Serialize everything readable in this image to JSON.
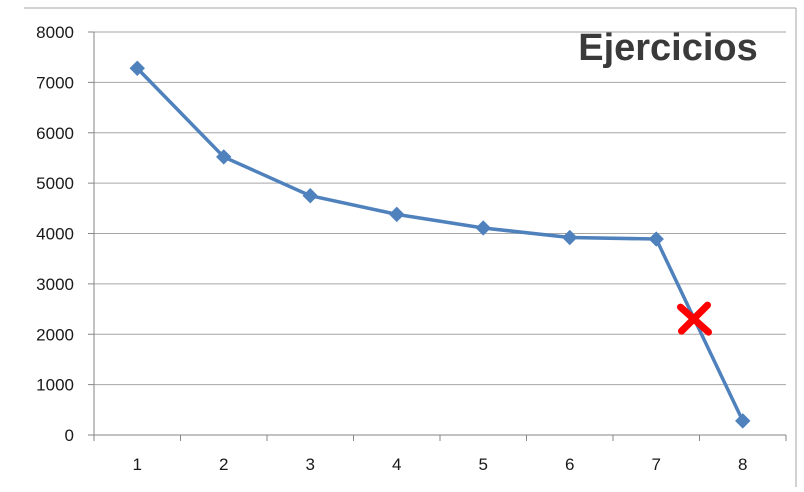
{
  "chart_data": {
    "type": "line",
    "title": "Ejercicios",
    "xlabel": "",
    "ylabel": "",
    "categories": [
      "1",
      "2",
      "3",
      "4",
      "5",
      "6",
      "7",
      "8"
    ],
    "series": [
      {
        "values": [
          7280,
          5520,
          4750,
          4380,
          4110,
          3920,
          3890,
          280
        ],
        "color": "#4f81bd",
        "marker": "diamond"
      }
    ],
    "ylim": [
      0,
      8000
    ],
    "yticks": [
      0,
      1000,
      2000,
      3000,
      4000,
      5000,
      6000,
      7000,
      8000
    ],
    "grid": true,
    "legend": "none",
    "annotations": [
      {
        "type": "cross-mark",
        "color": "#ff0000",
        "between_categories": [
          "7",
          "8"
        ],
        "y_value": 2300
      }
    ],
    "colors": {
      "gridline": "#a6a6a6",
      "axis": "#868686",
      "tick_text": "#1a1a1a",
      "title_text": "#3a3a3a",
      "frame": "#a6a6a6"
    }
  }
}
